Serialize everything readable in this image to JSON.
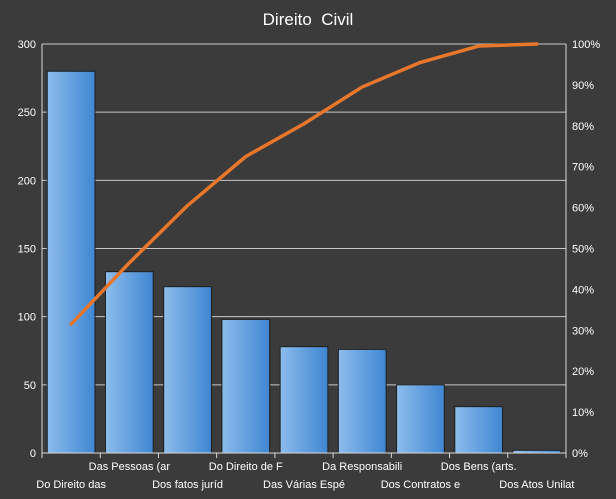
{
  "chart_data": {
    "type": "bar",
    "title": "Direito  Civil",
    "categories": [
      "Do Direito das",
      "Das Pessoas (ar",
      "Dos fatos juríd",
      "Do Direito de F",
      "Das Várias Espé",
      "Da Responsabili",
      "Dos Contratos e",
      "Dos Bens (arts.",
      "Dos Atos Unilat"
    ],
    "series": [
      {
        "type": "bar",
        "values": [
          280,
          133,
          122,
          98,
          78,
          76,
          50,
          34,
          2
        ]
      },
      {
        "type": "line",
        "axis": "secondary",
        "values": [
          31.5,
          46.5,
          60.5,
          72.5,
          80.5,
          89.5,
          95.5,
          99.5,
          100
        ]
      }
    ],
    "ylim": [
      0,
      300
    ],
    "yticks": [
      0,
      50,
      100,
      150,
      200,
      250,
      300
    ],
    "y2lim": [
      0,
      100
    ],
    "y2ticks": [
      "0%",
      "10%",
      "20%",
      "30%",
      "40%",
      "50%",
      "60%",
      "70%",
      "80%",
      "90%",
      "100%"
    ],
    "grid": true,
    "legend": "none",
    "colors": {
      "background": "#3b3b3b",
      "plot_background": "#3b3b3b",
      "grid": "#c8c8c8",
      "bar": "#4a90d9",
      "bar_light": "#7fb2e8",
      "line": "#e8762b"
    }
  }
}
